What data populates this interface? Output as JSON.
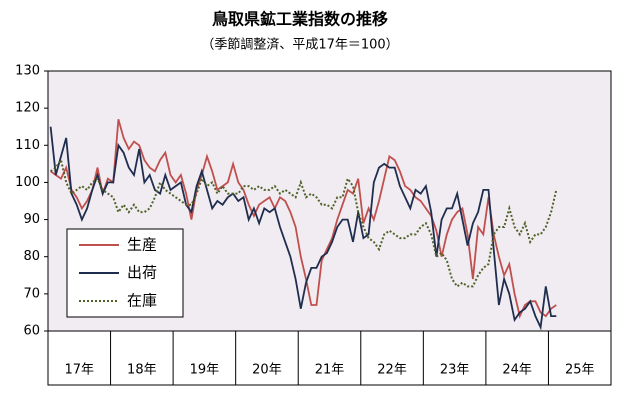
{
  "chart_data": {
    "type": "line",
    "title": "鳥取県鉱工業指数の推移",
    "subtitle": "（季節調整済、平成17年＝100）",
    "categories": [
      null,
      null,
      null,
      null,
      null,
      null,
      "17年",
      null,
      null,
      null,
      null,
      null,
      null,
      null,
      null,
      null,
      null,
      null,
      "18年",
      null,
      null,
      null,
      null,
      null,
      null,
      null,
      null,
      null,
      null,
      null,
      "19年",
      null,
      null,
      null,
      null,
      null,
      null,
      null,
      null,
      null,
      null,
      null,
      "20年",
      null,
      null,
      null,
      null,
      null,
      null,
      null,
      null,
      null,
      null,
      null,
      "21年",
      null,
      null,
      null,
      null,
      null,
      null,
      null,
      null,
      null,
      null,
      null,
      "22年",
      null,
      null,
      null,
      null,
      null,
      null,
      null,
      null,
      null,
      null,
      null,
      "23年",
      null,
      null,
      null,
      null,
      null,
      null,
      null,
      null,
      null,
      null,
      null,
      "24年",
      null,
      null,
      null,
      null,
      null,
      null,
      null,
      null,
      null,
      null,
      null,
      "25年",
      null,
      null,
      null,
      null,
      null
    ],
    "ylim": [
      60,
      130
    ],
    "yticks": [
      60,
      70,
      80,
      90,
      100,
      110,
      120,
      130
    ],
    "legend": "lower-left",
    "series": [
      {
        "name": "生産",
        "color": "#c0504d",
        "style": "solid",
        "values": [
          103,
          102,
          101,
          104,
          98,
          96,
          93,
          95,
          98,
          104,
          97,
          101,
          100,
          117,
          112,
          109,
          111,
          110,
          106,
          104,
          103,
          106,
          108,
          102,
          100,
          102,
          97,
          90,
          98,
          102,
          107,
          103,
          98,
          99,
          100,
          105,
          100,
          98,
          94,
          91,
          94,
          95,
          96,
          93,
          96,
          95,
          92,
          88,
          80,
          74,
          67,
          67,
          79,
          82,
          85,
          90,
          94,
          98,
          97,
          101,
          89,
          93,
          90,
          95,
          101,
          107,
          106,
          103,
          99,
          98,
          96,
          95,
          93,
          91,
          87,
          80,
          86,
          90,
          92,
          93,
          86,
          74,
          88,
          86,
          96,
          86,
          80,
          75,
          78,
          70,
          64,
          67,
          68,
          68,
          65,
          64,
          66,
          67,
          null,
          null,
          null,
          null,
          null,
          null,
          null,
          null,
          null,
          null
        ]
      },
      {
        "name": "出荷",
        "color": "#1f2d4e",
        "style": "solid",
        "values": [
          115,
          102,
          107,
          112,
          97,
          94,
          90,
          93,
          98,
          102,
          97,
          100,
          100,
          110,
          108,
          104,
          102,
          109,
          100,
          102,
          98,
          97,
          102,
          98,
          99,
          100,
          94,
          92,
          99,
          103,
          98,
          93,
          95,
          94,
          96,
          97,
          95,
          96,
          90,
          93,
          89,
          93,
          92,
          93,
          88,
          84,
          80,
          74,
          66,
          73,
          77,
          77,
          80,
          81,
          84,
          88,
          90,
          90,
          84,
          92,
          85,
          86,
          100,
          104,
          105,
          104,
          104,
          99,
          96,
          93,
          98,
          97,
          99,
          92,
          80,
          90,
          93,
          93,
          97,
          90,
          83,
          89,
          92,
          98,
          98,
          82,
          67,
          74,
          70,
          63,
          65,
          66,
          68,
          64,
          61,
          72,
          64,
          64,
          null,
          null,
          null,
          null,
          null,
          null,
          null,
          null,
          null,
          null
        ]
      },
      {
        "name": "在庫",
        "color": "#4f6228",
        "style": "dotted",
        "values": [
          103,
          104,
          106,
          100,
          97,
          98,
          99,
          98,
          100,
          101,
          98,
          97,
          96,
          92,
          94,
          92,
          94,
          92,
          92,
          93,
          96,
          100,
          98,
          97,
          96,
          95,
          94,
          94,
          97,
          101,
          99,
          100,
          97,
          99,
          97,
          97,
          97,
          99,
          99,
          98,
          99,
          98,
          98,
          99,
          97,
          98,
          97,
          96,
          100,
          96,
          97,
          96,
          94,
          94,
          93,
          96,
          96,
          101,
          99,
          92,
          88,
          85,
          84,
          82,
          86,
          87,
          86,
          85,
          85,
          86,
          86,
          88,
          89,
          86,
          80,
          81,
          79,
          74,
          72,
          73,
          72,
          72,
          75,
          77,
          78,
          86,
          88,
          88,
          93,
          88,
          86,
          89,
          84,
          86,
          86,
          88,
          92,
          98,
          null,
          null,
          null,
          null,
          null,
          null,
          null,
          null,
          null,
          null
        ]
      }
    ]
  }
}
